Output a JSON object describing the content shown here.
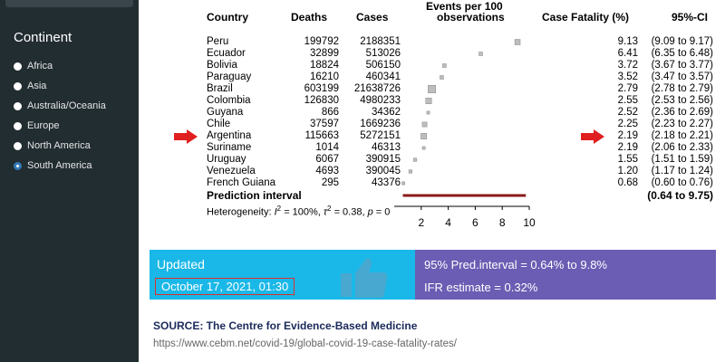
{
  "sidebar": {
    "title": "Continent",
    "options": [
      {
        "label": "Africa",
        "selected": false
      },
      {
        "label": "Asia",
        "selected": false
      },
      {
        "label": "Australia/Oceania",
        "selected": false
      },
      {
        "label": "Europe",
        "selected": false
      },
      {
        "label": "North America",
        "selected": false
      },
      {
        "label": "South America",
        "selected": true
      }
    ]
  },
  "forest_plot": {
    "headers": {
      "country": "Country",
      "deaths": "Deaths",
      "cases": "Cases",
      "events_line1": "Events per 100",
      "events_line2": "observations",
      "cfr": "Case Fatality (%)",
      "ci": "95%-CI"
    },
    "rows": [
      {
        "country": "Peru",
        "deaths": "199792",
        "cases": "2188351",
        "cfr": "9.13",
        "ci": "(9.09 to 9.17)",
        "est": 9.13,
        "weight": 1
      },
      {
        "country": "Ecuador",
        "deaths": "32899",
        "cases": "513026",
        "cfr": "6.41",
        "ci": "(6.35 to 6.48)",
        "est": 6.41,
        "weight": 0.5
      },
      {
        "country": "Bolivia",
        "deaths": "18824",
        "cases": "506150",
        "cfr": "3.72",
        "ci": "(3.67 to 3.77)",
        "est": 3.72,
        "weight": 0.5
      },
      {
        "country": "Paraguay",
        "deaths": "16210",
        "cases": "460341",
        "cfr": "3.52",
        "ci": "(3.47 to 3.57)",
        "est": 3.52,
        "weight": 0.5
      },
      {
        "country": "Brazil",
        "deaths": "603199",
        "cases": "21638726",
        "cfr": "2.79",
        "ci": "(2.78 to 2.79)",
        "est": 2.79,
        "weight": 1.6
      },
      {
        "country": "Colombia",
        "deaths": "126830",
        "cases": "4980233",
        "cfr": "2.55",
        "ci": "(2.53 to 2.56)",
        "est": 2.55,
        "weight": 1.1
      },
      {
        "country": "Guyana",
        "deaths": "866",
        "cases": "34362",
        "cfr": "2.52",
        "ci": "(2.36 to 2.69)",
        "est": 2.52,
        "weight": 0.3
      },
      {
        "country": "Chile",
        "deaths": "37597",
        "cases": "1669236",
        "cfr": "2.25",
        "ci": "(2.23 to 2.27)",
        "est": 2.25,
        "weight": 0.8
      },
      {
        "country": "Argentina",
        "deaths": "115663",
        "cases": "5272151",
        "cfr": "2.19",
        "ci": "(2.18 to 2.21)",
        "est": 2.19,
        "weight": 1.1
      },
      {
        "country": "Suriname",
        "deaths": "1014",
        "cases": "46313",
        "cfr": "2.19",
        "ci": "(2.06 to 2.33)",
        "est": 2.19,
        "weight": 0.3
      },
      {
        "country": "Uruguay",
        "deaths": "6067",
        "cases": "390915",
        "cfr": "1.55",
        "ci": "(1.51 to 1.59)",
        "est": 1.55,
        "weight": 0.4
      },
      {
        "country": "Venezuela",
        "deaths": "4693",
        "cases": "390045",
        "cfr": "1.20",
        "ci": "(1.17 to 1.24)",
        "est": 1.2,
        "weight": 0.4
      },
      {
        "country": "French Guiana",
        "deaths": "295",
        "cases": "43376",
        "cfr": "0.68",
        "ci": "(0.60 to 0.76)",
        "est": 0.68,
        "weight": 0.3
      }
    ],
    "prediction_label": "Prediction interval",
    "prediction_ci": "(0.64 to 9.75)",
    "prediction_range": [
      0.64,
      9.75
    ],
    "heterogeneity_label": "Heterogeneity: ",
    "i2_value": "= 100%, ",
    "tau2_value": "= 0.38, ",
    "p_value": "= 0",
    "axis_ticks": [
      "2",
      "4",
      "6",
      "8",
      "10"
    ],
    "axis_range": [
      0,
      10
    ],
    "highlight_rows": [
      "Argentina"
    ]
  },
  "banners": {
    "updated_label": "Updated",
    "updated_date": "October 17, 2021, 01:30",
    "pred_interval": "95% Pred.interval = 0.64% to 9.8%",
    "ifr": "IFR estimate = 0.32%"
  },
  "source": {
    "title": "SOURCE: The Centre for Evidence-Based Medicine",
    "url": "https://www.cebm.net/covid-19/global-covid-19-case-fatality-rates/"
  },
  "colors": {
    "sidebar_bg": "#222d32",
    "arrow": "#e02020",
    "prediction_bar": "#8b1a1a",
    "banner_blue": "#1ab8e8",
    "banner_purple": "#6b5db3"
  }
}
